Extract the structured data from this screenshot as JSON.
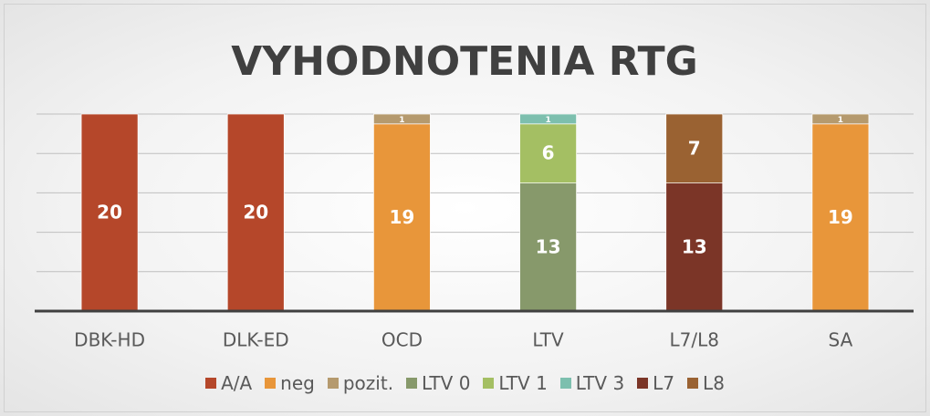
{
  "chart_data": {
    "type": "stacked_bar",
    "title": "VYHODNOTENIA RTG",
    "categories": [
      "DBK-HD",
      "DLK-ED",
      "OCD",
      "LTV",
      "L7/L8",
      "SA"
    ],
    "series": [
      {
        "name": "A/A",
        "color": "#b5472a",
        "values": [
          20,
          20,
          null,
          null,
          null,
          null
        ]
      },
      {
        "name": "neg",
        "color": "#e8963a",
        "values": [
          null,
          null,
          19,
          null,
          null,
          19
        ]
      },
      {
        "name": "pozit.",
        "color": "#b59a6e",
        "values": [
          null,
          null,
          1,
          null,
          null,
          1
        ]
      },
      {
        "name": "LTV 0",
        "color": "#87996b",
        "values": [
          null,
          null,
          null,
          13,
          null,
          null
        ]
      },
      {
        "name": "LTV 1",
        "color": "#a4bf63",
        "values": [
          null,
          null,
          null,
          6,
          null,
          null
        ]
      },
      {
        "name": "LTV 3",
        "color": "#7dbfae",
        "values": [
          null,
          null,
          null,
          1,
          null,
          null
        ]
      },
      {
        "name": "L7",
        "color": "#7b3527",
        "values": [
          null,
          null,
          null,
          null,
          13,
          null
        ]
      },
      {
        "name": "L8",
        "color": "#9a6232",
        "values": [
          null,
          null,
          null,
          null,
          7,
          null
        ]
      }
    ],
    "ylim": [
      0,
      20
    ],
    "yticks": [
      0,
      4,
      8,
      12,
      16,
      20
    ],
    "grid": true,
    "legend": "bottom"
  }
}
